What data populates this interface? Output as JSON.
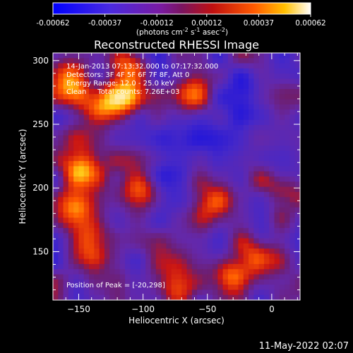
{
  "colorbar": {
    "tick_labels": [
      "-0.00062",
      "-0.00037",
      "-0.00012",
      "0.00012",
      "0.00037",
      "0.00062"
    ],
    "range": [
      -0.00062,
      0.00062
    ],
    "unit_text": "(photons cm",
    "unit_exp1": "-2",
    "unit_text2": " s",
    "unit_exp2": "-1",
    "unit_text3": " asec",
    "unit_exp3": "-2",
    "unit_text4": ")"
  },
  "chart_data": {
    "type": "heatmap",
    "title": "Reconstructed RHESSI Image",
    "xlabel": "Heliocentric X (arcsec)",
    "ylabel": "Heliocentric Y (arcsec)",
    "xlim": [
      -170,
      22
    ],
    "ylim": [
      112,
      306
    ],
    "x_ticks": [
      -150,
      -100,
      -50,
      0
    ],
    "y_ticks": [
      150,
      200,
      250,
      300
    ],
    "x_tick_labels": [
      "−150",
      "−100",
      "−50",
      "0"
    ],
    "y_tick_labels": [
      "150",
      "200",
      "250",
      "300"
    ],
    "peak_position": [
      -20,
      298
    ],
    "annotations": [
      "14-Jan-2013 07:13:32.000 to 07:17:32.000",
      "Detectors: 3F 4F 5F 6F 7F 8F, Att 0",
      "Energy Range: 12.0 - 25.0 keV",
      "Clean     Total counts: 7.26E+03"
    ],
    "peak_label": "Position of Peak = [-20,298]"
  },
  "footer": {
    "timestamp": "11-May-2022 02:07"
  }
}
